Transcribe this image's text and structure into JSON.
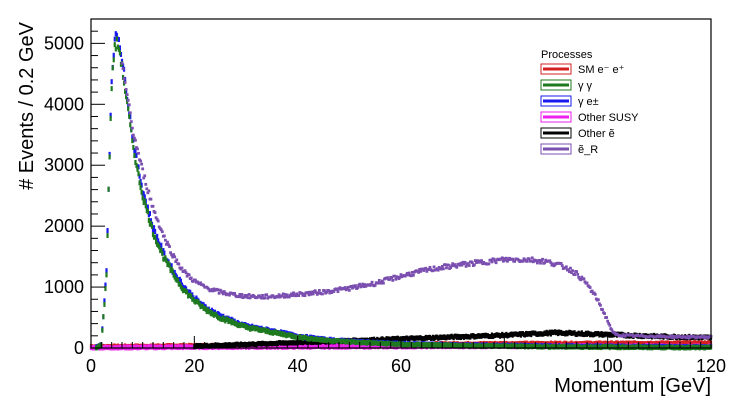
{
  "chart_data": {
    "type": "scatter",
    "title": "",
    "xlabel": "Momentum [GeV]",
    "ylabel": "# Events / 0.2  GeV",
    "xlim": [
      0,
      120
    ],
    "ylim": [
      0,
      5400
    ],
    "x_ticks": [
      0,
      20,
      40,
      60,
      80,
      100,
      120
    ],
    "y_ticks": [
      0,
      1000,
      2000,
      3000,
      4000,
      5000
    ],
    "grid": false,
    "legend": {
      "title": "Processes",
      "placement": "top-right",
      "entries": [
        {
          "label": "SM e⁻ e⁺",
          "color": "#d62020"
        },
        {
          "label": "γ γ",
          "color": "#1f7a1f"
        },
        {
          "label": "γ e±",
          "color": "#1a1aee"
        },
        {
          "label": "Other SUSY",
          "color": "#ee22ee"
        },
        {
          "label": "Other ẽ",
          "color": "#000000"
        },
        {
          "label": "ẽ_R",
          "color": "#7b4fb0"
        }
      ]
    },
    "series": [
      {
        "name": "γ γ",
        "color": "#1f7a1f",
        "x": [
          1,
          2,
          3,
          3.5,
          4,
          4.5,
          5,
          5.5,
          6,
          7,
          8,
          9,
          10,
          12,
          14,
          16,
          18,
          20,
          22,
          25,
          28,
          30,
          35,
          40,
          45,
          50,
          55,
          60,
          70,
          80,
          90,
          100,
          110,
          120
        ],
        "y": [
          5,
          50,
          1200,
          2900,
          4300,
          4900,
          5000,
          4900,
          4600,
          4000,
          3400,
          2900,
          2500,
          1900,
          1500,
          1200,
          950,
          780,
          640,
          500,
          400,
          340,
          260,
          180,
          130,
          100,
          80,
          60,
          40,
          30,
          20,
          15,
          10,
          5
        ]
      },
      {
        "name": "γ e±",
        "color": "#1a1aee",
        "x": [
          1,
          2,
          3,
          3.5,
          4,
          4.5,
          5,
          5.5,
          6,
          7,
          8,
          9,
          10,
          12,
          14,
          16,
          18,
          20,
          22,
          25,
          28,
          30,
          35,
          40,
          45,
          50,
          55,
          60,
          70,
          80,
          90,
          100,
          110,
          120
        ],
        "y": [
          10,
          60,
          1250,
          2950,
          4400,
          5000,
          5150,
          5050,
          4750,
          4150,
          3500,
          3000,
          2600,
          1980,
          1560,
          1250,
          1000,
          820,
          670,
          530,
          420,
          360,
          280,
          195,
          140,
          110,
          90,
          70,
          50,
          40,
          30,
          25,
          20,
          15
        ]
      },
      {
        "name": "ẽ_R",
        "color": "#7b4fb0",
        "x": [
          6,
          8,
          10,
          12,
          14,
          16,
          18,
          20,
          22,
          24,
          26,
          28,
          30,
          33,
          36,
          40,
          45,
          50,
          55,
          60,
          65,
          70,
          75,
          80,
          85,
          88,
          90,
          92,
          94,
          96,
          98,
          100,
          101,
          102,
          105,
          110,
          115,
          120
        ],
        "y": [
          4700,
          3600,
          2900,
          2300,
          1850,
          1500,
          1250,
          1100,
          1000,
          940,
          900,
          870,
          850,
          840,
          850,
          880,
          920,
          980,
          1060,
          1180,
          1280,
          1350,
          1400,
          1450,
          1450,
          1420,
          1380,
          1320,
          1220,
          1050,
          800,
          450,
          250,
          210,
          200,
          190,
          180,
          180
        ]
      },
      {
        "name": "Other ẽ",
        "color": "#000000",
        "x": [
          20,
          30,
          40,
          50,
          60,
          70,
          80,
          90,
          100,
          110,
          120
        ],
        "y": [
          30,
          60,
          90,
          120,
          150,
          180,
          210,
          250,
          220,
          190,
          170
        ]
      },
      {
        "name": "Other SUSY",
        "color": "#ee22ee",
        "x": [
          0,
          20,
          40,
          60,
          80,
          100,
          120
        ],
        "y": [
          5,
          15,
          20,
          25,
          30,
          30,
          25
        ]
      },
      {
        "name": "SM e⁻ e⁺",
        "color": "#d62020",
        "x": [
          0,
          20,
          40,
          60,
          80,
          100,
          120
        ],
        "y": [
          20,
          35,
          50,
          60,
          70,
          75,
          80
        ]
      }
    ]
  }
}
